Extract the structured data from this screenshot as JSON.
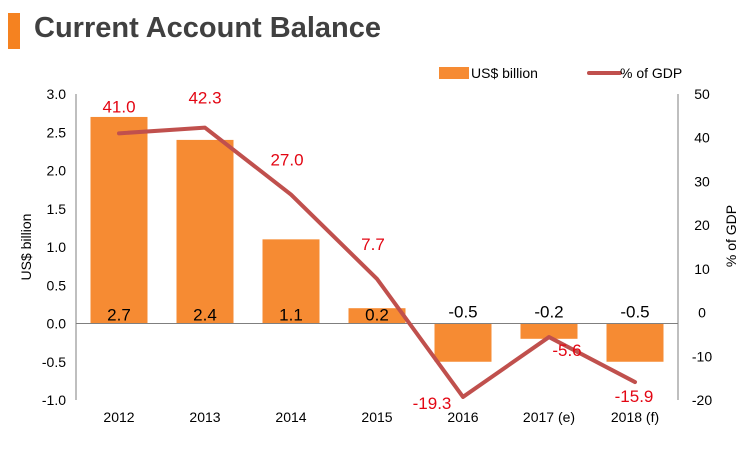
{
  "header": {
    "title": "Current Account Balance"
  },
  "colors": {
    "accent": "#F58220",
    "bar": "#F68B33",
    "line": "#C0504D",
    "line_label": "#E30613"
  },
  "chart_data": {
    "type": "bar",
    "categories": [
      "2012",
      "2013",
      "2014",
      "2015",
      "2016",
      "2017 (e)",
      "2018 (f)"
    ],
    "series": [
      {
        "name": "US$ billion",
        "type": "bar",
        "axis": "left",
        "values": [
          2.7,
          2.4,
          1.1,
          0.2,
          -0.5,
          -0.2,
          -0.5
        ],
        "labels": [
          "2.7",
          "2.4",
          "1.1",
          "0.2",
          "-0.5",
          "-0.2",
          "-0.5"
        ]
      },
      {
        "name": "% of GDP",
        "type": "line",
        "axis": "right",
        "values": [
          41.0,
          42.3,
          27.0,
          7.7,
          -19.3,
          -5.6,
          -15.9
        ],
        "labels": [
          "41.0",
          "42.3",
          "27.0",
          "7.7",
          "-19.3",
          "-5.6",
          "-15.9"
        ]
      }
    ],
    "ylabel": "US$ billion",
    "y2label": "% of GDP",
    "ylim": [
      -1.0,
      3.0
    ],
    "y2lim": [
      -20,
      50
    ],
    "yticks": [
      "3.0",
      "2.5",
      "2.0",
      "1.5",
      "1.0",
      "0.5",
      "0.0",
      "-0.5",
      "-1.0"
    ],
    "y2ticks": [
      "50",
      "40",
      "30",
      "20",
      "10",
      "0",
      "-10",
      "-20"
    ],
    "legend_position": "top-right",
    "grid": false
  }
}
